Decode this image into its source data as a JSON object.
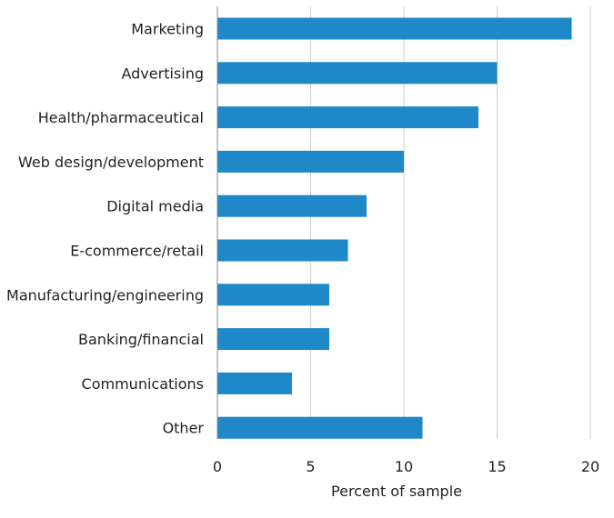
{
  "chart_data": {
    "type": "bar",
    "orientation": "horizontal",
    "categories": [
      "Marketing",
      "Advertising",
      "Health/pharmaceutical",
      "Web design/development",
      "Digital media",
      "E-commerce/retail",
      "Manufacturing/engineering",
      "Banking/financial",
      "Communications",
      "Other"
    ],
    "values": [
      19,
      15,
      14,
      10,
      8,
      7,
      6,
      6,
      4,
      11
    ],
    "title": "",
    "xlabel": "Percent of sample",
    "ylabel": "",
    "xlim": [
      0,
      20
    ],
    "xticks": [
      "0",
      "5",
      "10",
      "15",
      "20"
    ],
    "grid": "vertical",
    "bar_color": "#1f88c9"
  }
}
